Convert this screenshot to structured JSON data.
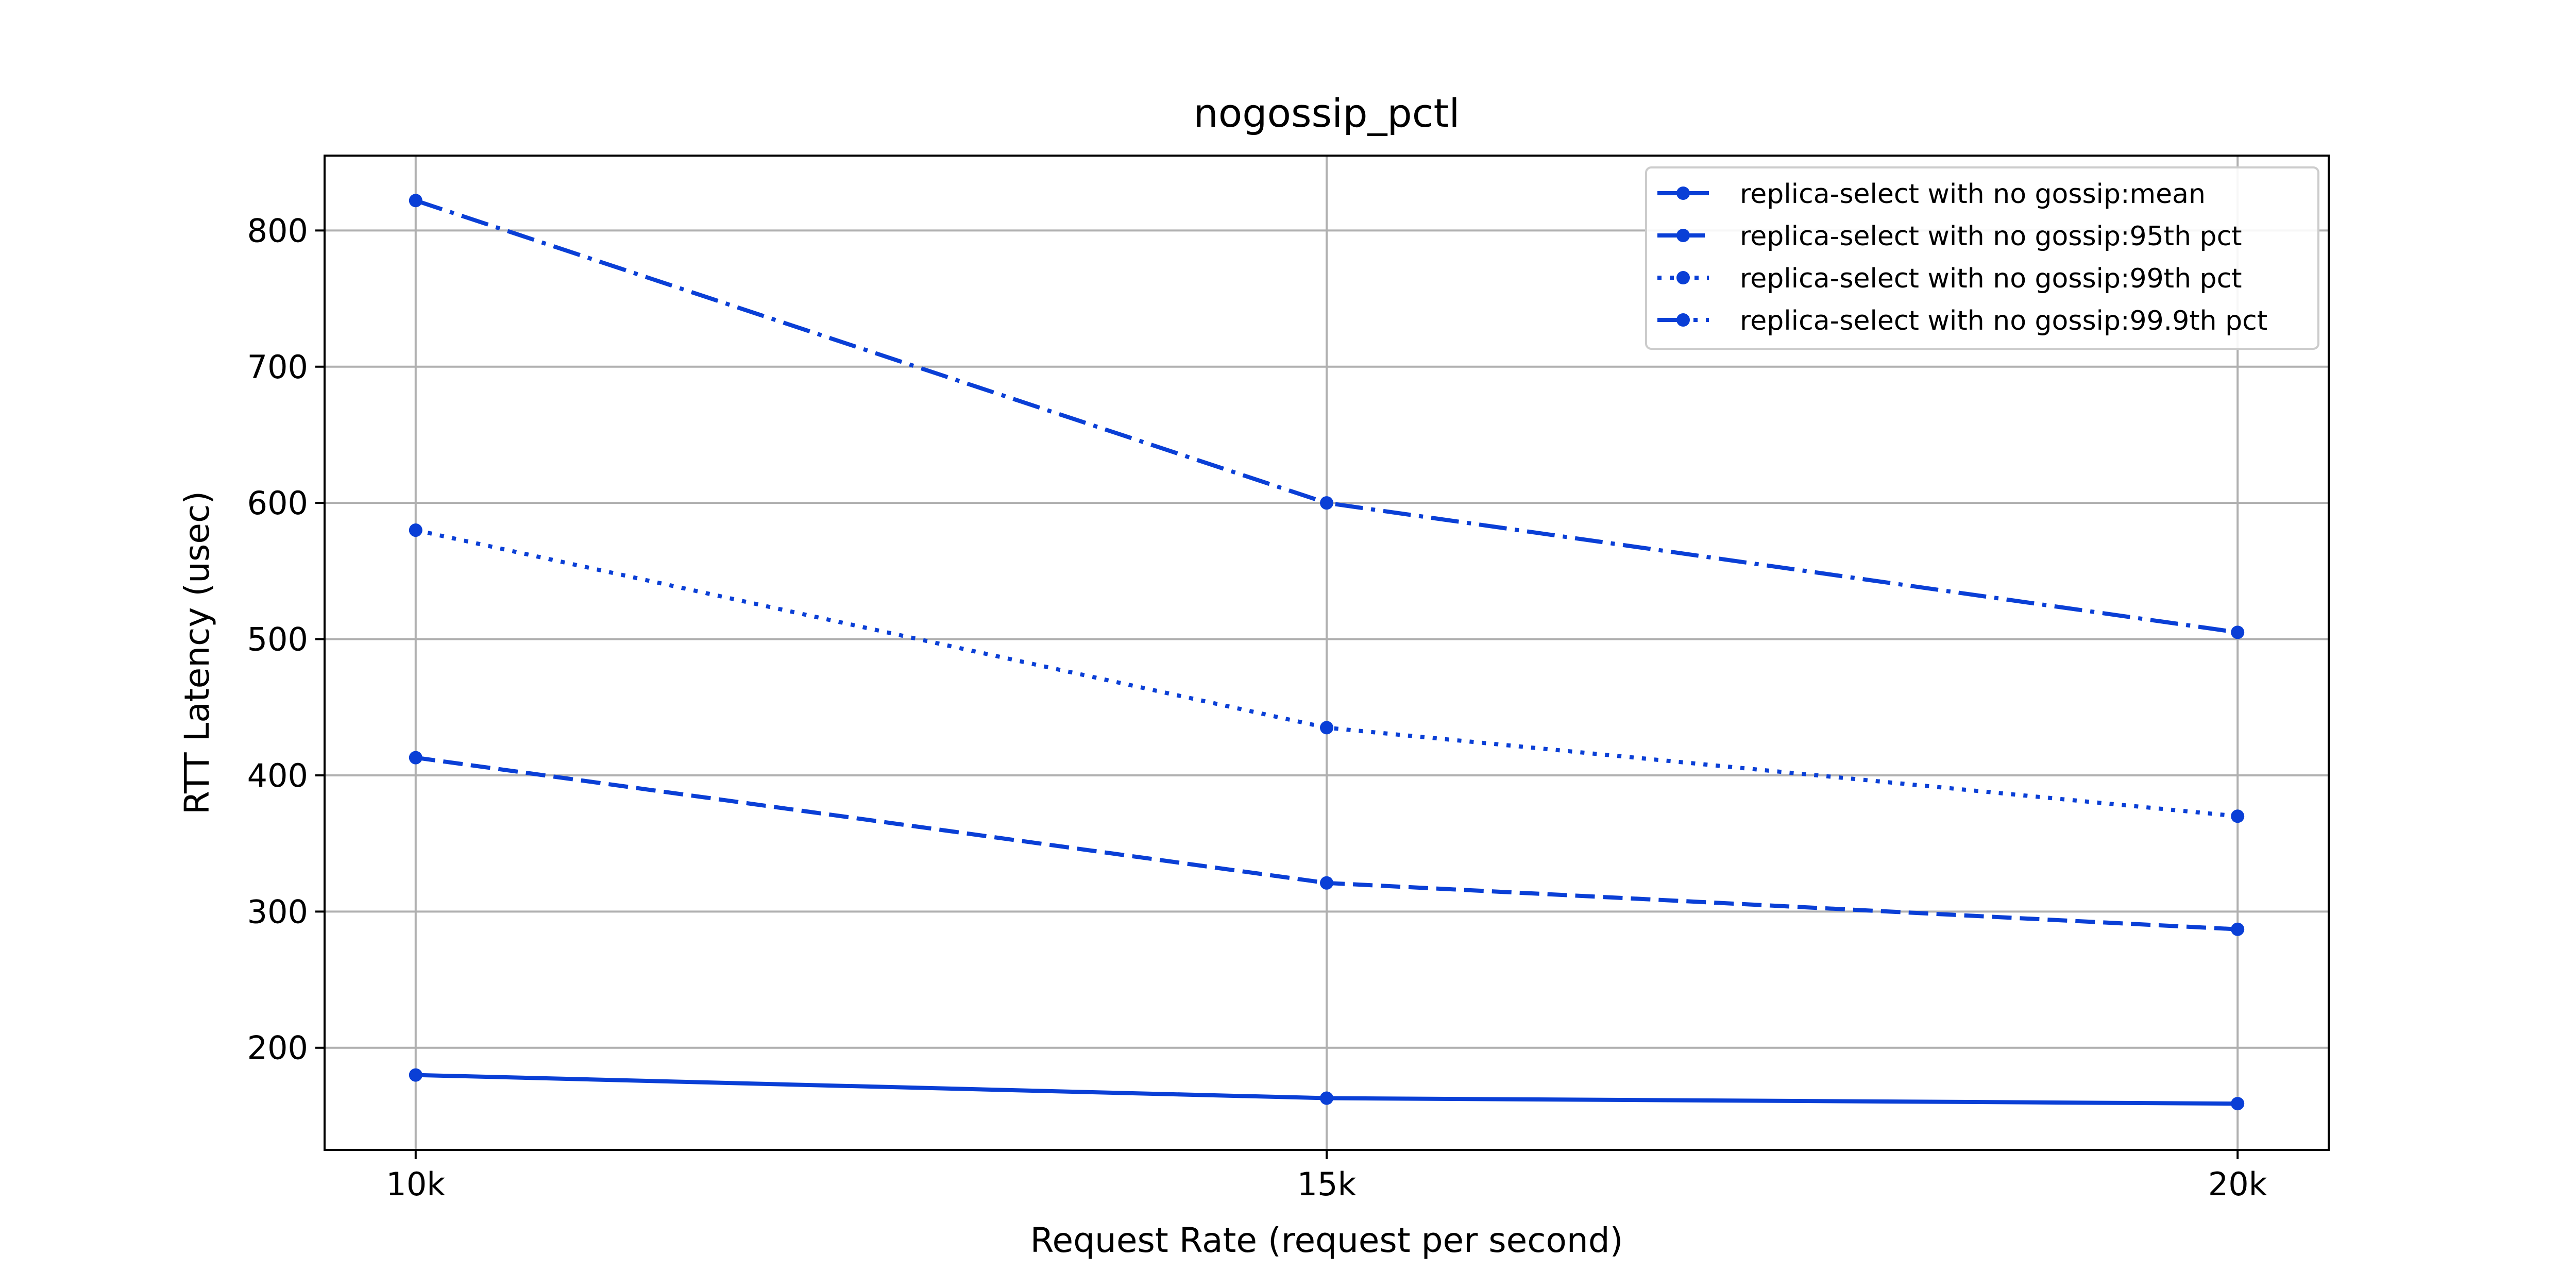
{
  "chart_data": {
    "type": "line",
    "title": "nogossip_pctl",
    "xlabel": "Request Rate (request per second)",
    "ylabel": "RTT Latency (usec)",
    "x": [
      10000,
      15000,
      20000
    ],
    "x_tick_labels": [
      "10k",
      "15k",
      "20k"
    ],
    "xlim": [
      9500,
      20500
    ],
    "ylim": [
      125,
      855
    ],
    "y_ticks": [
      200,
      300,
      400,
      500,
      600,
      700,
      800
    ],
    "grid": true,
    "legend_position": "top-right",
    "color": "#0a3fd6",
    "series": [
      {
        "name": "replica-select with no gossip:mean",
        "values": [
          180,
          163,
          159
        ],
        "dash": "solid"
      },
      {
        "name": "replica-select with no gossip:95th pct",
        "values": [
          413,
          321,
          287
        ],
        "dash": "dashed"
      },
      {
        "name": "replica-select with no gossip:99th pct",
        "values": [
          580,
          435,
          370
        ],
        "dash": "dotted"
      },
      {
        "name": "replica-select with no gossip:99.9th pct",
        "values": [
          822,
          600,
          505
        ],
        "dash": "dashdot"
      }
    ]
  }
}
